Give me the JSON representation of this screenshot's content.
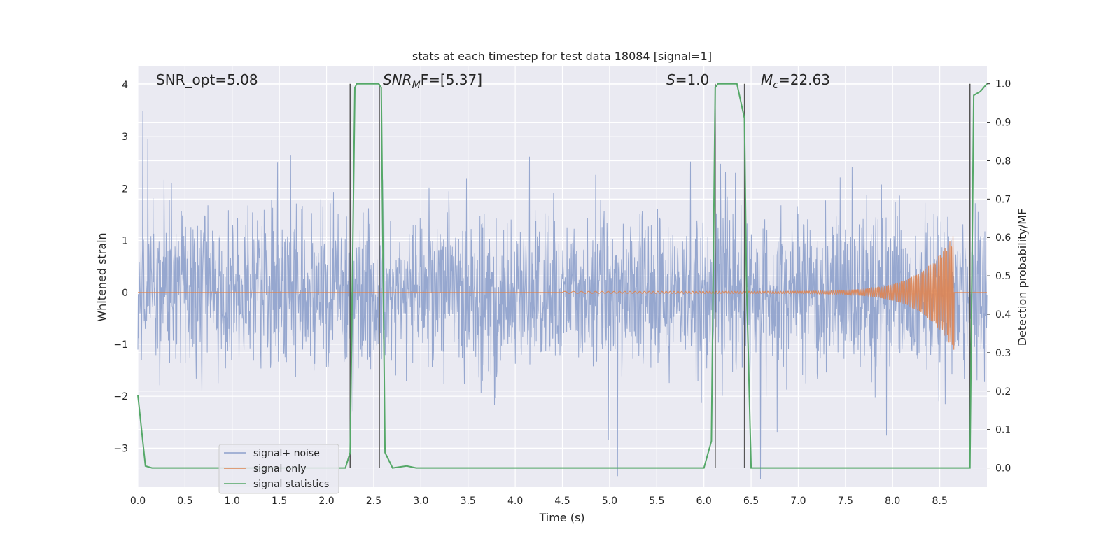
{
  "chart_data": {
    "type": "line",
    "title": "stats at each timestep for test data 18084 [signal=1]",
    "xlabel": "Time (s)",
    "ylabel": "Whitened strain",
    "ylabel_right": "Detection probability/MF",
    "xlim": [
      0,
      9.0
    ],
    "ylim": [
      -3.75,
      4.35
    ],
    "ylim_right": [
      -0.05,
      1.045
    ],
    "x_ticks": [
      "0.0",
      "0.5",
      "1.0",
      "1.5",
      "2.0",
      "2.5",
      "3.0",
      "3.5",
      "4.0",
      "4.5",
      "5.0",
      "5.5",
      "6.0",
      "6.5",
      "7.0",
      "7.5",
      "8.0",
      "8.5"
    ],
    "y_ticks": [
      "−3",
      "−2",
      "−1",
      "0",
      "1",
      "2",
      "3",
      "4"
    ],
    "y_ticks_right": [
      "0.0",
      "0.1",
      "0.2",
      "0.3",
      "0.4",
      "0.5",
      "0.6",
      "0.7",
      "0.8",
      "0.9",
      "1.0"
    ],
    "grid": true,
    "legend_position": "lower-left",
    "annotations": {
      "snr_opt": "SNR_opt=5.08",
      "snr_mf": "SNR",
      "snr_mf_sub": "M",
      "snr_mf_rest": "F=[5.37]",
      "s_label": "S",
      "s_rest": "=1.0",
      "mc_label": "M",
      "mc_sub": "c",
      "mc_rest": "=22.63"
    },
    "series": [
      {
        "name": "signal+ noise",
        "color": "#8da0cb",
        "description_values": "whitened strain noise roughly in [-3.6, 3.5]"
      },
      {
        "name": "signal only",
        "color": "#dd8452",
        "chirp_start": 4.5,
        "chirp_end": 8.65,
        "peak_amplitude": 1.1
      },
      {
        "name": "signal statistics",
        "color": "#55a868",
        "x": [
          0.0,
          0.08,
          0.15,
          1.0,
          2.0,
          2.2,
          2.25,
          2.3,
          2.32,
          2.45,
          2.55,
          2.58,
          2.62,
          2.7,
          2.85,
          2.95,
          3.0,
          4.0,
          5.0,
          6.0,
          6.08,
          6.12,
          6.15,
          6.25,
          6.35,
          6.43,
          6.45,
          6.5,
          6.55,
          7.0,
          8.0,
          8.82,
          8.86,
          8.93,
          9.0
        ],
        "y": [
          0.19,
          0.005,
          0.0,
          0.0,
          0.0,
          0.0,
          0.04,
          0.99,
          1.0,
          1.0,
          1.0,
          0.99,
          0.04,
          0.0,
          0.005,
          0.0,
          0.0,
          0.0,
          0.0,
          0.0,
          0.07,
          0.99,
          1.0,
          1.0,
          1.0,
          0.91,
          0.5,
          0.0,
          0.0,
          0.0,
          0.0,
          0.0,
          0.97,
          0.98,
          1.0
        ]
      }
    ],
    "vertical_lines": [
      2.25,
      2.56,
      6.12,
      6.43,
      8.82
    ],
    "colors": {
      "plot_background": "#eaeaf2",
      "grid": "#ffffff",
      "vline": "#555555"
    }
  }
}
